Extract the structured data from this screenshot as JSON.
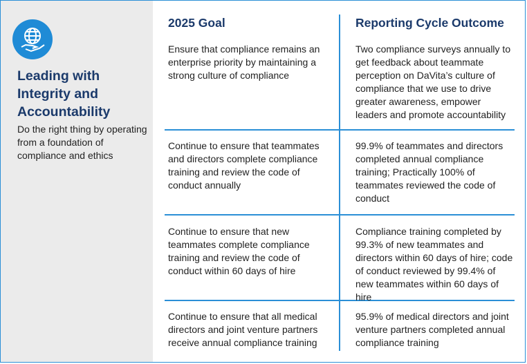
{
  "sidebar": {
    "icon": "globe-hand-icon",
    "title": "Leading with Integrity and Accountability",
    "description": "Do the right thing by operating from a foundation of compliance and ethics"
  },
  "table": {
    "headers": [
      "2025 Goal",
      "Reporting Cycle Outcome"
    ],
    "rows": [
      {
        "goal": "Ensure that compliance remains an enterprise priority by maintaining a strong culture of compliance",
        "outcome": "Two compliance surveys annually to get feedback about teammate perception on DaVita’s culture of compliance that we use to drive greater awareness, empower leaders and promote accountability"
      },
      {
        "goal": "Continue to ensure that teammates and directors complete compliance training and review the code of conduct annually",
        "outcome": "99.9% of teammates and directors completed annual compliance training; Practically 100% of teammates reviewed the code of conduct"
      },
      {
        "goal": "Continue to ensure that new teammates complete compliance training and review the code of conduct within 60 days of hire",
        "outcome": "Compliance training completed by 99.3% of new teammates and directors within 60 days of hire; code of conduct reviewed by 99.4% of new teammates within 60 days of hire"
      },
      {
        "goal": "Continue to ensure that all medical directors and joint venture partners receive annual compliance training",
        "outcome": "95.9% of medical directors and joint venture partners completed annual compliance training"
      }
    ]
  },
  "colors": {
    "accent": "#2a8fd6",
    "title": "#1b3a6b",
    "sidebar_bg": "#ebebeb"
  }
}
